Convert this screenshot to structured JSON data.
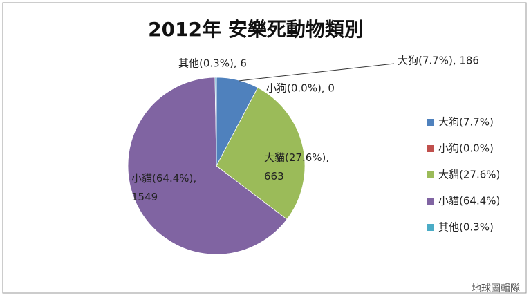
{
  "chart_data": {
    "type": "pie",
    "title": "2012年 安樂死動物類別",
    "categories": [
      "大狗(7.7%)",
      "小狗(0.0%)",
      "大貓(27.6%)",
      "小貓(64.4%)",
      "其他(0.3%)"
    ],
    "values": [
      186,
      0,
      663,
      1549,
      6
    ],
    "value_labels": [
      "大狗(7.7%), 186",
      "小狗(0.0%), 0",
      "大貓(27.6%), 663",
      "小貓(64.4%), 1549",
      "其他(0.3%), 6"
    ],
    "colors": [
      "#4f81bd",
      "#c0504d",
      "#9bbb59",
      "#8064a2",
      "#4bacc6"
    ],
    "legend": "right"
  },
  "watermark": "地球圖輯隊"
}
